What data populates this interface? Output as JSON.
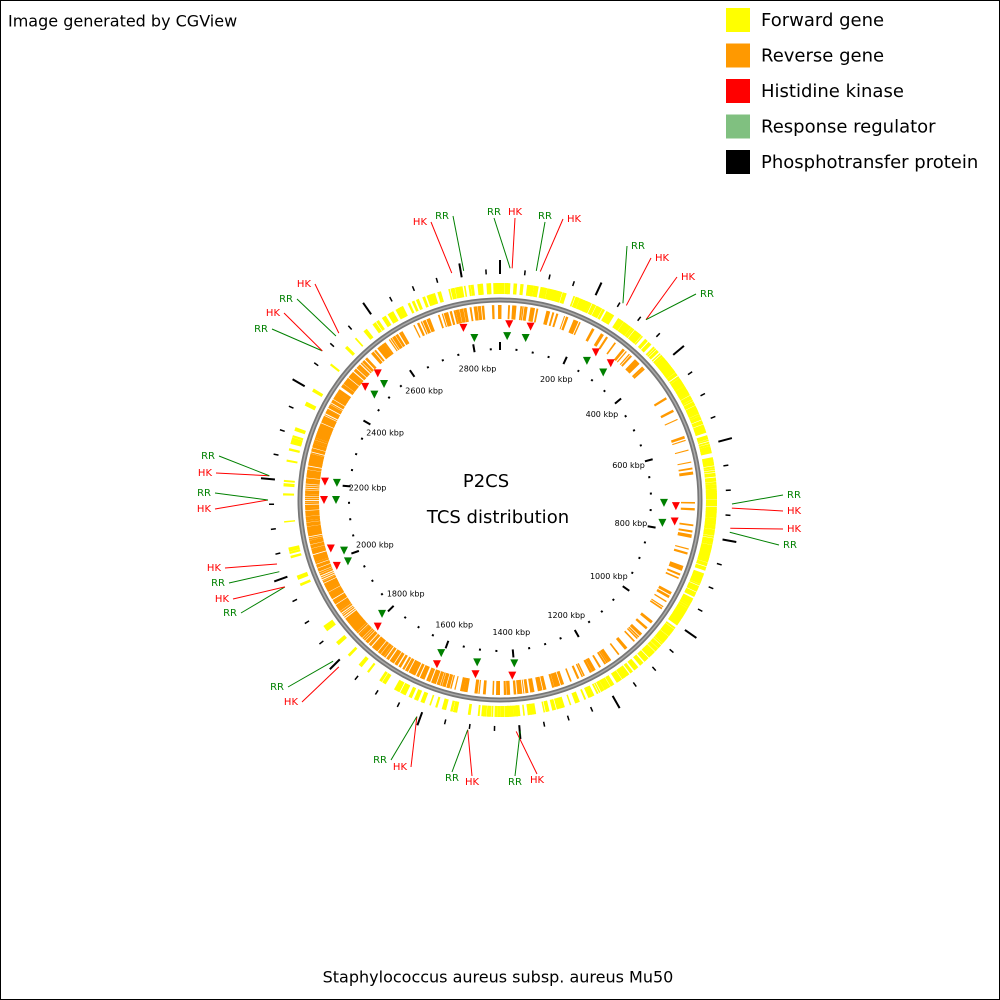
{
  "header": {
    "title": "Image generated by CGView"
  },
  "legend": [
    {
      "label": "Forward gene",
      "color": "#ffff00"
    },
    {
      "label": "Reverse gene",
      "color": "#ff9900"
    },
    {
      "label": "Histidine kinase",
      "color": "#ff0000"
    },
    {
      "label": "Response regulator",
      "color": "#80c080"
    },
    {
      "label": "Phosphotransfer protein",
      "color": "#000000"
    }
  ],
  "center": {
    "line1": "P2CS",
    "line2": "TCS distribution"
  },
  "scale_labels": [
    "200 kbp",
    "400 kbp",
    "600 kbp",
    "800 kbp",
    "1000 kbp",
    "1200 kbp",
    "1400 kbp",
    "1600 kbp",
    "1800 kbp",
    "2000 kbp",
    "2200 kbp",
    "2400 kbp",
    "2600 kbp",
    "2800 kbp"
  ],
  "features": [
    "HK",
    "RR",
    "RR",
    "HK",
    "RR",
    "HK",
    "RR",
    "HK",
    "HK",
    "RR",
    "RR",
    "HK",
    "HK",
    "RR",
    "HK",
    "RR",
    "HK",
    "RR",
    "HK",
    "RR",
    "HK",
    "RR",
    "RR",
    "HK",
    "RR",
    "HK",
    "HK",
    "RR",
    "HK",
    "RR",
    "RR",
    "HK",
    "RR",
    "HK"
  ],
  "footer": {
    "organism": "Staphylococcus aureus subsp. aureus Mu50"
  }
}
